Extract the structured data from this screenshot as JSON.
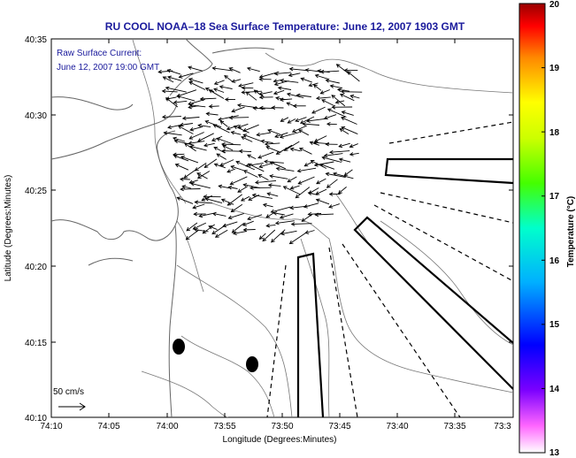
{
  "title": "RU COOL  NOAA–18  Sea Surface Temperature:  June 12, 2007 1903 GMT",
  "current_note": {
    "line1": "Raw Surface Current:",
    "line2": "June 12, 2007 19:00 GMT"
  },
  "scale_label": "50 cm/s",
  "axes": {
    "xlabel": "Longitude (Degrees:Minutes)",
    "ylabel": "Latitude (Degrees:Minutes)",
    "xticks": [
      "74:10",
      "74:05",
      "74:00",
      "73:55",
      "73:50",
      "73:45",
      "73:40",
      "73:35",
      "73:3"
    ],
    "yticks": [
      "40:35",
      "40:30",
      "40:25",
      "40:20",
      "40:15",
      "40:10"
    ]
  },
  "colorbar": {
    "label": "Temperature (°C)",
    "ticks": [
      "20",
      "19",
      "18",
      "17",
      "16",
      "15",
      "14",
      "13"
    ],
    "min": 13,
    "max": 20
  },
  "chart_data": {
    "type": "map",
    "x_range": [
      "74:10",
      "73:30"
    ],
    "y_range": [
      "40:10",
      "40:35"
    ],
    "colormap": "jet (13 to 20 °C)",
    "features": [
      "coastline",
      "bathymetry contours",
      "raw surface current vectors",
      "shipping lane outlines",
      "two black buoy markers"
    ]
  }
}
